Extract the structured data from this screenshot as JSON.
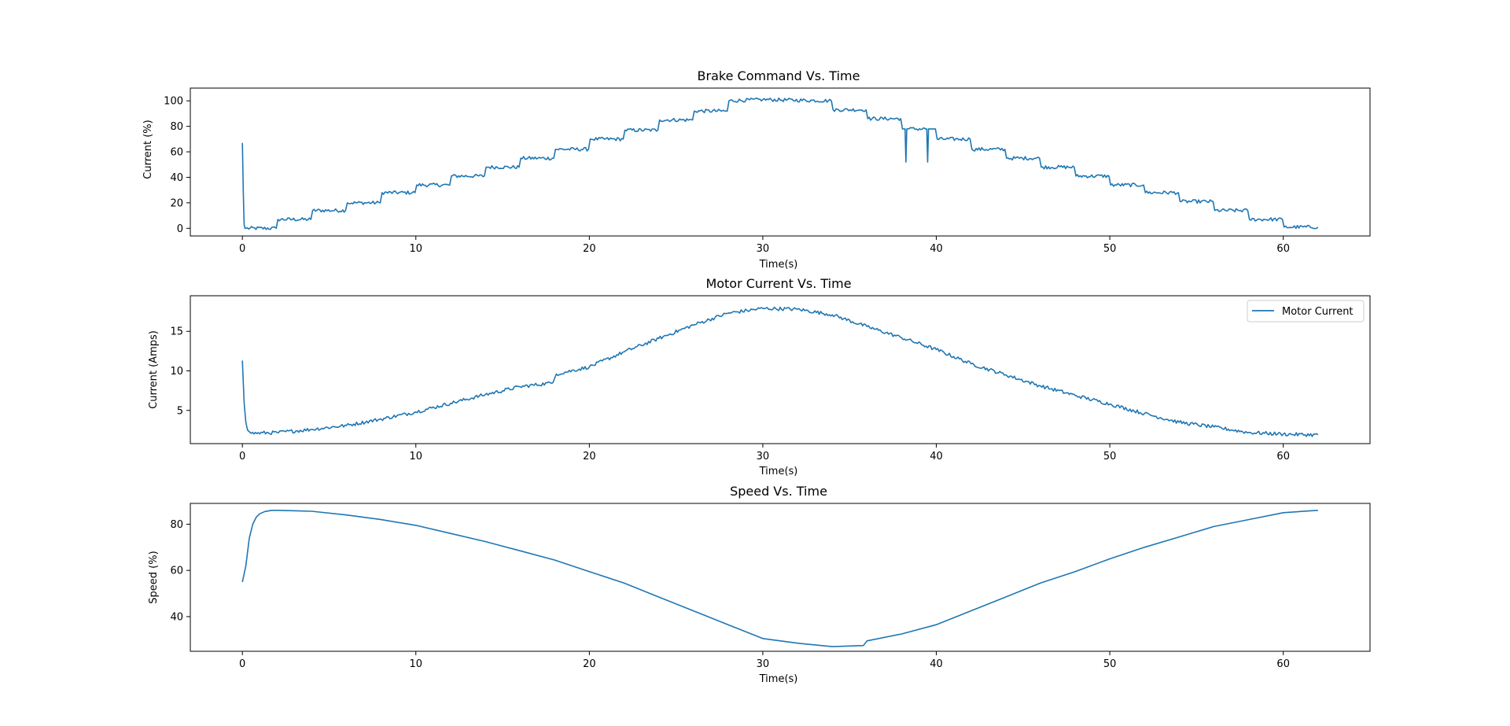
{
  "colors": {
    "series": "#1f77b4",
    "axis": "#000000",
    "background": "#ffffff"
  },
  "chart_data": [
    {
      "type": "line",
      "title": "Brake Command Vs. Time",
      "xlabel": "Time(s)",
      "ylabel": "Current (%)",
      "xlim": [
        -3,
        65
      ],
      "ylim": [
        -6,
        110
      ],
      "xticks": [
        0,
        10,
        20,
        30,
        40,
        50,
        60
      ],
      "yticks": [
        0,
        20,
        40,
        60,
        80,
        100
      ],
      "grid": false,
      "legend": null,
      "series": [
        {
          "color": "#1f77b4",
          "x": [
            0,
            0.05,
            0.1,
            0.15,
            0.2,
            1.95,
            2.05,
            3.95,
            4.05,
            5.95,
            6.05,
            7.95,
            8.05,
            9.95,
            10.05,
            11.95,
            12.05,
            13.95,
            14.05,
            15.95,
            16.05,
            17.95,
            18.05,
            19.95,
            20.05,
            21.95,
            22.05,
            23.95,
            24.05,
            25.95,
            26.05,
            27.95,
            28.05,
            30,
            33.95,
            34.05,
            35.95,
            36.05,
            37.95,
            38.05,
            38.2,
            38.25,
            38.3,
            38.35,
            39.45,
            39.5,
            39.55,
            39.6,
            39.95,
            40.05,
            41.95,
            42.05,
            43.95,
            44.05,
            45.95,
            46.05,
            47.95,
            48.05,
            49.95,
            50.05,
            51.95,
            52.05,
            53.95,
            54.05,
            55.95,
            56.05,
            57.95,
            58.05,
            59.95,
            60.05,
            62
          ],
          "y": [
            67,
            30,
            3,
            0,
            0,
            0,
            7,
            7,
            14,
            14,
            20,
            20,
            28,
            28,
            34,
            34,
            41,
            41,
            48,
            48,
            55,
            55,
            62,
            62,
            70,
            70,
            77,
            77,
            85,
            85,
            92,
            92,
            100,
            101,
            100,
            93,
            93,
            86,
            86,
            78,
            78,
            52,
            78,
            78,
            78,
            52,
            78,
            78,
            78,
            70,
            70,
            62,
            62,
            55,
            55,
            48,
            48,
            41,
            41,
            34,
            34,
            28,
            28,
            21,
            21,
            14,
            14,
            7,
            7,
            1,
            1
          ]
        }
      ]
    },
    {
      "type": "line",
      "title": "Motor Current Vs. Time",
      "xlabel": "Time(s)",
      "ylabel": "Current (Amps)",
      "xlim": [
        -3,
        65
      ],
      "ylim": [
        0.8,
        19.5
      ],
      "xticks": [
        0,
        10,
        20,
        30,
        40,
        50,
        60
      ],
      "yticks": [
        5,
        10,
        15
      ],
      "grid": false,
      "legend": "top-right",
      "series": [
        {
          "name": "Motor Current",
          "color": "#1f77b4",
          "x": [
            0,
            0.1,
            0.2,
            0.3,
            0.5,
            2,
            4,
            6,
            8,
            10,
            12,
            14,
            16,
            17.9,
            18.1,
            20,
            22,
            24,
            26,
            28,
            30,
            32,
            34,
            36,
            38,
            40,
            42,
            44,
            46,
            48,
            50,
            52,
            54,
            56,
            58,
            60,
            62
          ],
          "y": [
            11.3,
            6,
            3.5,
            2.5,
            2.1,
            2.2,
            2.6,
            3.1,
            3.9,
            4.8,
            5.9,
            7,
            8,
            8.5,
            9.6,
            10.5,
            12.4,
            14.1,
            15.8,
            17.3,
            17.9,
            17.8,
            17.1,
            15.6,
            14.2,
            12.7,
            10.9,
            9.5,
            8.1,
            6.9,
            5.8,
            4.6,
            3.5,
            2.9,
            2.2,
            2,
            1.9
          ]
        }
      ]
    },
    {
      "type": "line",
      "title": "Speed Vs. Time",
      "xlabel": "",
      "ylabel": "Speed (%)",
      "xlim": [
        -3,
        65
      ],
      "ylim": [
        25,
        89
      ],
      "xticks": [
        0,
        10,
        20,
        30,
        40,
        50,
        60
      ],
      "yticks": [
        40,
        60,
        80
      ],
      "grid": false,
      "legend": null,
      "series": [
        {
          "color": "#1f77b4",
          "x": [
            0,
            0.2,
            0.4,
            0.6,
            0.8,
            1,
            1.3,
            1.7,
            2,
            4,
            6,
            8,
            10,
            12,
            14,
            16,
            18,
            20,
            22,
            24,
            26,
            28,
            30,
            32,
            34,
            35.8,
            36,
            38,
            40,
            42,
            44,
            46,
            48,
            50,
            52,
            54,
            56,
            58,
            60,
            62
          ],
          "y": [
            55,
            62,
            74,
            80,
            83,
            84.5,
            85.5,
            86,
            86,
            85.6,
            84,
            82,
            79.5,
            76,
            72.5,
            68.5,
            64.5,
            59.5,
            54.5,
            48.5,
            42.5,
            36.5,
            30.5,
            28.5,
            27,
            27.5,
            29.5,
            32.5,
            36.5,
            42.5,
            48.5,
            54.5,
            59.5,
            65,
            70,
            74.5,
            79,
            82,
            85,
            86
          ]
        }
      ]
    }
  ]
}
